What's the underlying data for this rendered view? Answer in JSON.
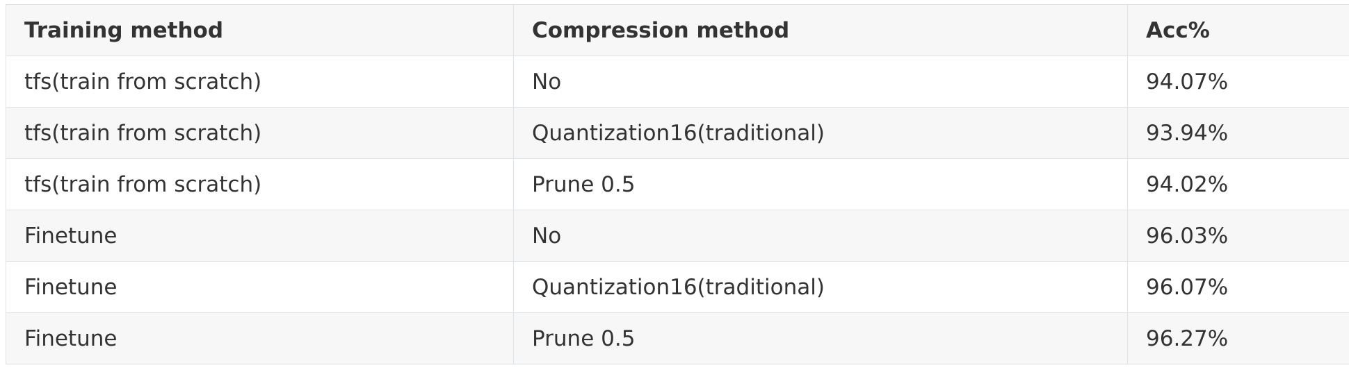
{
  "table": {
    "headers": [
      "Training method",
      "Compression method",
      "Acc%"
    ],
    "rows": [
      [
        "tfs(train from scratch)",
        "No",
        "94.07%"
      ],
      [
        "tfs(train from scratch)",
        "Quantization16(traditional)",
        "93.94%"
      ],
      [
        "tfs(train from scratch)",
        "Prune 0.5",
        "94.02%"
      ],
      [
        "Finetune",
        "No",
        "96.03%"
      ],
      [
        "Finetune",
        "Quantization16(traditional)",
        "96.07%"
      ],
      [
        "Finetune",
        "Prune 0.5",
        "96.27%"
      ]
    ]
  }
}
